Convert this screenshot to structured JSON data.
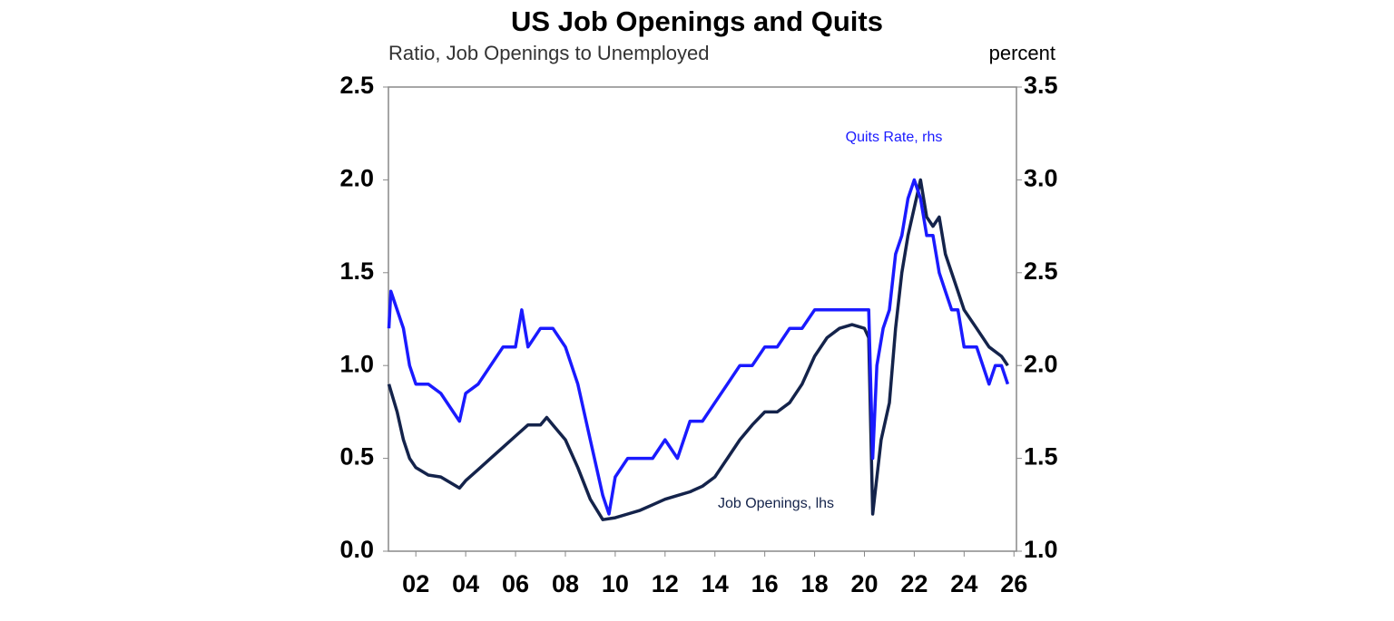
{
  "chart_data": {
    "type": "line",
    "title": "US Job Openings and Quits",
    "y_label": "Ratio, Job Openings to Unemployed",
    "y2_label": "percent",
    "annotations": [
      "Quits Rate, rhs",
      "Job Openings, lhs"
    ],
    "xlim": [
      2000.9,
      2026.1
    ],
    "xticks": [
      {
        "value": 2002,
        "label": "02"
      },
      {
        "value": 2004,
        "label": "04"
      },
      {
        "value": 2006,
        "label": "06"
      },
      {
        "value": 2008,
        "label": "08"
      },
      {
        "value": 2010,
        "label": "10"
      },
      {
        "value": 2012,
        "label": "12"
      },
      {
        "value": 2014,
        "label": "14"
      },
      {
        "value": 2016,
        "label": "16"
      },
      {
        "value": 2018,
        "label": "18"
      },
      {
        "value": 2020,
        "label": "20"
      },
      {
        "value": 2022,
        "label": "22"
      },
      {
        "value": 2024,
        "label": "24"
      },
      {
        "value": 2026,
        "label": "26"
      }
    ],
    "ylim": [
      0,
      2.5
    ],
    "yticks": [
      {
        "value": 0,
        "label": "0.0"
      },
      {
        "value": 0.5,
        "label": "0.5"
      },
      {
        "value": 1,
        "label": "1.0"
      },
      {
        "value": 1.5,
        "label": "1.5"
      },
      {
        "value": 2,
        "label": "2.0"
      },
      {
        "value": 2.5,
        "label": "2.5"
      }
    ],
    "y2lim": [
      1,
      3.5
    ],
    "y2ticks": [
      {
        "value": 1,
        "label": "1.0"
      },
      {
        "value": 1.5,
        "label": "1.5"
      },
      {
        "value": 2,
        "label": "2.0"
      },
      {
        "value": 2.5,
        "label": "2.5"
      },
      {
        "value": 3,
        "label": "3.0"
      },
      {
        "value": 3.5,
        "label": "3.5"
      }
    ],
    "series": [
      {
        "name": "Job Openings",
        "color": "#14234b",
        "axis": "y",
        "x": [
          2000.92,
          2001.25,
          2001.5,
          2001.75,
          2002,
          2002.5,
          2003,
          2003.5,
          2003.75,
          2004,
          2004.5,
          2005,
          2005.5,
          2006,
          2006.5,
          2007,
          2007.25,
          2007.5,
          2008,
          2008.5,
          2009,
          2009.5,
          2010,
          2010.5,
          2011,
          2011.5,
          2012,
          2012.5,
          2013,
          2013.5,
          2014,
          2014.5,
          2015,
          2015.5,
          2016,
          2016.5,
          2017,
          2017.5,
          2018,
          2018.5,
          2019,
          2019.5,
          2020,
          2020.17,
          2020.33,
          2020.67,
          2021,
          2021.25,
          2021.5,
          2021.75,
          2022,
          2022.25,
          2022.5,
          2022.75,
          2023,
          2023.25,
          2023.5,
          2023.75,
          2024,
          2024.5,
          2025,
          2025.5,
          2025.75
        ],
        "values": [
          0.9,
          0.75,
          0.6,
          0.5,
          0.45,
          0.41,
          0.4,
          0.36,
          0.34,
          0.38,
          0.44,
          0.5,
          0.56,
          0.62,
          0.68,
          0.68,
          0.72,
          0.68,
          0.6,
          0.45,
          0.28,
          0.17,
          0.18,
          0.2,
          0.22,
          0.25,
          0.28,
          0.3,
          0.32,
          0.35,
          0.4,
          0.5,
          0.6,
          0.68,
          0.75,
          0.75,
          0.8,
          0.9,
          1.05,
          1.15,
          1.2,
          1.22,
          1.2,
          1.15,
          0.2,
          0.6,
          0.8,
          1.2,
          1.5,
          1.7,
          1.85,
          2.0,
          1.8,
          1.75,
          1.8,
          1.6,
          1.5,
          1.4,
          1.3,
          1.2,
          1.1,
          1.05,
          1.0
        ]
      },
      {
        "name": "Quits Rate",
        "color": "#1a1aff",
        "axis": "y2",
        "x": [
          2000.92,
          2001,
          2001.25,
          2001.5,
          2001.75,
          2002,
          2002.5,
          2003,
          2003.5,
          2003.75,
          2004,
          2004.5,
          2005,
          2005.5,
          2006,
          2006.25,
          2006.5,
          2007,
          2007.5,
          2008,
          2008.5,
          2009,
          2009.5,
          2009.75,
          2010,
          2010.5,
          2011,
          2011.5,
          2012,
          2012.5,
          2013,
          2013.5,
          2014,
          2014.5,
          2015,
          2015.5,
          2016,
          2016.5,
          2017,
          2017.5,
          2018,
          2018.5,
          2019,
          2019.5,
          2020,
          2020.17,
          2020.33,
          2020.5,
          2020.75,
          2021,
          2021.25,
          2021.5,
          2021.75,
          2022,
          2022.25,
          2022.5,
          2022.75,
          2023,
          2023.25,
          2023.5,
          2023.75,
          2024,
          2024.5,
          2025,
          2025.25,
          2025.5,
          2025.75
        ],
        "values": [
          2.2,
          2.4,
          2.3,
          2.2,
          2.0,
          1.9,
          1.9,
          1.85,
          1.75,
          1.7,
          1.85,
          1.9,
          2.0,
          2.1,
          2.1,
          2.3,
          2.1,
          2.2,
          2.2,
          2.1,
          1.9,
          1.6,
          1.3,
          1.2,
          1.4,
          1.5,
          1.5,
          1.5,
          1.6,
          1.5,
          1.7,
          1.7,
          1.8,
          1.9,
          2.0,
          2.0,
          2.1,
          2.1,
          2.2,
          2.2,
          2.3,
          2.3,
          2.3,
          2.3,
          2.3,
          2.3,
          1.5,
          2.0,
          2.2,
          2.3,
          2.6,
          2.7,
          2.9,
          3.0,
          2.9,
          2.7,
          2.7,
          2.5,
          2.4,
          2.3,
          2.3,
          2.1,
          2.1,
          1.9,
          2.0,
          2.0,
          1.9
        ]
      }
    ]
  }
}
